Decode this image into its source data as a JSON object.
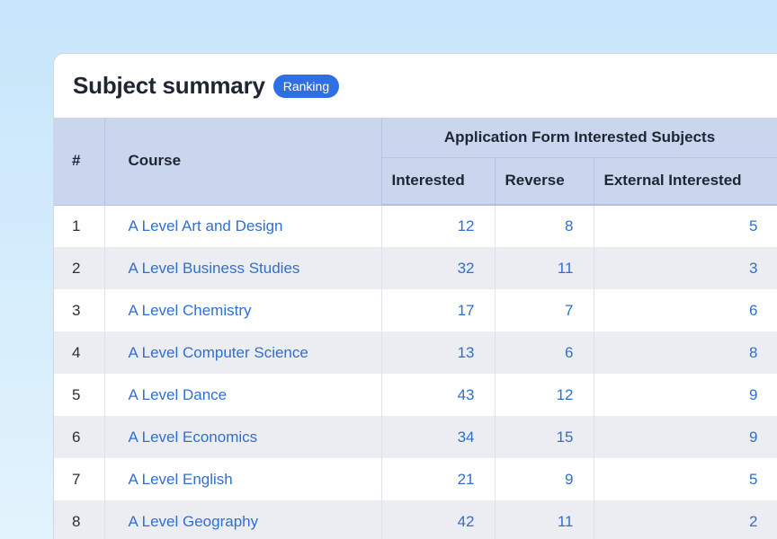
{
  "card": {
    "title": "Subject summary",
    "badge": "Ranking"
  },
  "table": {
    "headers": {
      "index": "#",
      "course": "Course",
      "group": "Application Form Interested Subjects",
      "interested": "Interested",
      "reverse": "Reverse",
      "external": "External Interested"
    },
    "rows": [
      {
        "index": "1",
        "course": "A Level Art and Design",
        "interested": "12",
        "reverse": "8",
        "external": "5"
      },
      {
        "index": "2",
        "course": "A Level Business Studies",
        "interested": "32",
        "reverse": "11",
        "external": "3"
      },
      {
        "index": "3",
        "course": "A Level Chemistry",
        "interested": "17",
        "reverse": "7",
        "external": "6"
      },
      {
        "index": "4",
        "course": "A Level Computer Science",
        "interested": "13",
        "reverse": "6",
        "external": "8"
      },
      {
        "index": "5",
        "course": "A Level Dance",
        "interested": "43",
        "reverse": "12",
        "external": "9"
      },
      {
        "index": "6",
        "course": "A Level Economics",
        "interested": "34",
        "reverse": "15",
        "external": "9"
      },
      {
        "index": "7",
        "course": "A Level English",
        "interested": "21",
        "reverse": "9",
        "external": "5"
      },
      {
        "index": "8",
        "course": "A Level Geography",
        "interested": "42",
        "reverse": "11",
        "external": "2"
      }
    ]
  }
}
